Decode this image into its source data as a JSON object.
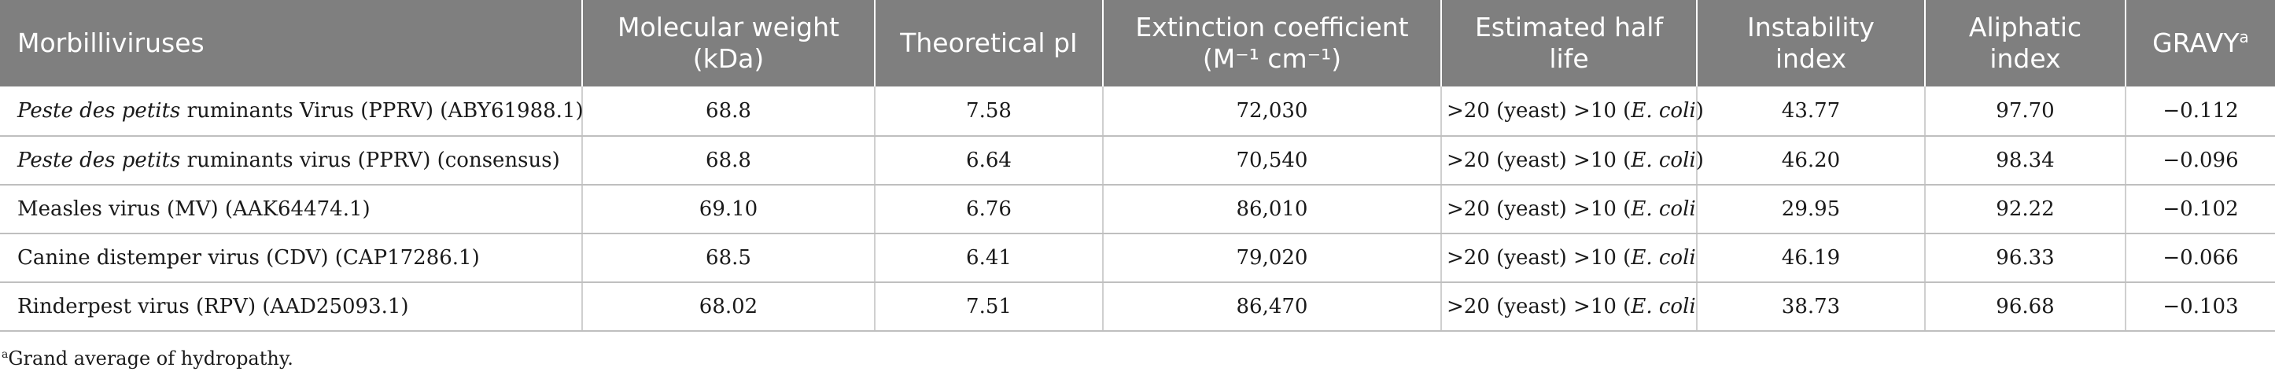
{
  "table": {
    "headers": [
      {
        "line1": "Morbilliviruses",
        "line2": ""
      },
      {
        "line1": "Molecular weight",
        "line2": "(kDa)"
      },
      {
        "line1": "Theoretical pI",
        "line2": ""
      },
      {
        "line1": "Extinction coefficient",
        "line2": "(M⁻¹ cm⁻¹)"
      },
      {
        "line1": "Estimated half",
        "line2": "life"
      },
      {
        "line1": "Instability",
        "line2": "index"
      },
      {
        "line1": "Aliphatic",
        "line2": "index"
      },
      {
        "line1": "GRAVY",
        "line2": "",
        "sup": "a"
      }
    ],
    "rows": [
      {
        "name_italic": "Peste des petits",
        "name_rest": " ruminants Virus (PPRV) (ABY61988.1)",
        "mw": "68.8",
        "pi": "7.58",
        "ext": "72,030",
        "half_pre": ">20 (yeast) >10 (",
        "half_ital": "E. coli",
        "half_post": ")",
        "instab": "43.77",
        "aliph": "97.70",
        "gravy": "−0.112"
      },
      {
        "name_italic": "Peste des petits",
        "name_rest": " ruminants virus (PPRV) (consensus)",
        "mw": "68.8",
        "pi": "6.64",
        "ext": "70,540",
        "half_pre": ">20 (yeast) >10 (",
        "half_ital": "E. coli",
        "half_post": ")",
        "instab": "46.20",
        "aliph": "98.34",
        "gravy": "−0.096"
      },
      {
        "name_italic": "",
        "name_rest": "Measles virus (MV) (AAK64474.1)",
        "mw": "69.10",
        "pi": "6.76",
        "ext": "86,010",
        "half_pre": ">20 (yeast) >10 (",
        "half_ital": "E. coli",
        "half_post": "",
        "instab": "29.95",
        "aliph": "92.22",
        "gravy": "−0.102"
      },
      {
        "name_italic": "",
        "name_rest": "Canine distemper virus (CDV) (CAP17286.1)",
        "mw": "68.5",
        "pi": "6.41",
        "ext": "79,020",
        "half_pre": ">20 (yeast) >10 (",
        "half_ital": "E. coli",
        "half_post": "",
        "instab": "46.19",
        "aliph": "96.33",
        "gravy": "−0.066"
      },
      {
        "name_italic": "",
        "name_rest": "Rinderpest virus (RPV) (AAD25093.1)",
        "mw": "68.02",
        "pi": "7.51",
        "ext": "86,470",
        "half_pre": ">20 (yeast) >10 (",
        "half_ital": "E. coli",
        "half_post": "",
        "instab": "38.73",
        "aliph": "96.68",
        "gravy": "−0.103"
      }
    ]
  },
  "footnote": {
    "sup": "a",
    "text": "Grand average of hydropathy."
  },
  "colors": {
    "header_bg": "#7f7f7f",
    "header_text": "#ffffff",
    "row_border": "#bfbfbf"
  }
}
